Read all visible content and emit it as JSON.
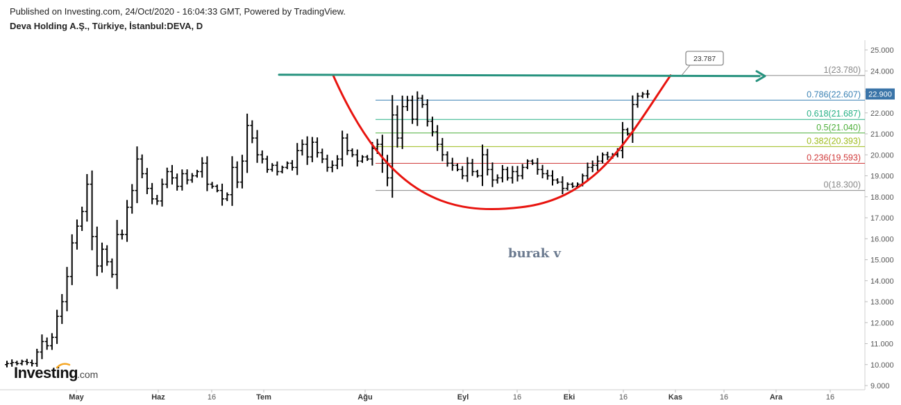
{
  "header": {
    "published": "Published on Investing.com, 24/Oct/2020 - 16:04:33 GMT, Powered by TradingView.",
    "symbol": "Deva Holding A.Ş., Türkiye, İstanbul:DEVA, D"
  },
  "logo": {
    "main": "Investing",
    "suffix": ".com"
  },
  "annotation": {
    "author": "burak v",
    "callout_value": "23.787"
  },
  "last_price": {
    "label": "22.900",
    "value": 22.9,
    "bg_color": "#3a74a8"
  },
  "colors": {
    "bars": "#000000",
    "cup": "#e8140f",
    "resistance": "#26927e",
    "fib_1": "#888888",
    "fib_0786": "#3b82b4",
    "fib_0618": "#26b085",
    "fib_05": "#4caf3a",
    "fib_0382": "#9dbb1a",
    "fib_0236": "#d03a3a",
    "fib_0": "#888888"
  },
  "chart_data": {
    "type": "ohlc-bar",
    "title": "Deva Holding A.Ş., Türkiye, İstanbul:DEVA, D",
    "ylim": [
      9.0,
      25.5
    ],
    "y_ticks": [
      "9.000",
      "10.000",
      "11.000",
      "12.000",
      "13.000",
      "14.000",
      "15.000",
      "16.000",
      "17.000",
      "18.000",
      "19.000",
      "20.000",
      "21.000",
      "22.000",
      "23.000",
      "24.000",
      "25.000"
    ],
    "x_ticks": [
      {
        "label": "May",
        "bold": true
      },
      {
        "label": "Haz",
        "bold": true
      },
      {
        "label": "16",
        "bold": false
      },
      {
        "label": "Tem",
        "bold": true
      },
      {
        "label": "Ağu",
        "bold": true
      },
      {
        "label": "Eyl",
        "bold": true
      },
      {
        "label": "16",
        "bold": false
      },
      {
        "label": "Eki",
        "bold": true
      },
      {
        "label": "16",
        "bold": false
      },
      {
        "label": "Kas",
        "bold": true
      },
      {
        "label": "16",
        "bold": false
      },
      {
        "label": "Ara",
        "bold": true
      },
      {
        "label": "16",
        "bold": false
      }
    ],
    "fib_levels": [
      {
        "ratio": "1",
        "price": 23.78,
        "label": "1(23.780)",
        "color_key": "fib_1"
      },
      {
        "ratio": "0.786",
        "price": 22.607,
        "label": "0.786(22.607)",
        "color_key": "fib_0786"
      },
      {
        "ratio": "0.618",
        "price": 21.687,
        "label": "0.618(21.687)",
        "color_key": "fib_0618"
      },
      {
        "ratio": "0.5",
        "price": 21.04,
        "label": "0.5(21.040)",
        "color_key": "fib_05"
      },
      {
        "ratio": "0.382",
        "price": 20.393,
        "label": "0.382(20.393)",
        "color_key": "fib_0382"
      },
      {
        "ratio": "0.236",
        "price": 19.593,
        "label": "0.236(19.593)",
        "color_key": "fib_0236"
      },
      {
        "ratio": "0",
        "price": 18.3,
        "label": "0(18.300)",
        "color_key": "fib_0"
      }
    ],
    "resistance_price": 23.787,
    "cup_bottom_price": 17.5,
    "closes": [
      10.05,
      10.1,
      10.05,
      10.15,
      10.1,
      10.05,
      10.6,
      11.1,
      10.9,
      11.3,
      12.3,
      13.0,
      14.2,
      15.8,
      16.6,
      17.3,
      18.6,
      16.1,
      14.7,
      15.5,
      14.9,
      14.3,
      16.2,
      16.2,
      17.5,
      18.3,
      19.8,
      19.1,
      18.4,
      17.9,
      17.8,
      18.6,
      19.2,
      18.9,
      18.5,
      19.1,
      18.8,
      19.0,
      19.2,
      19.6,
      18.6,
      18.5,
      18.3,
      17.9,
      18.1,
      19.4,
      18.7,
      19.7,
      21.4,
      20.8,
      20.0,
      19.8,
      19.3,
      19.5,
      19.2,
      19.4,
      19.6,
      19.4,
      20.2,
      20.5,
      19.9,
      20.6,
      20.1,
      19.8,
      19.4,
      19.5,
      19.8,
      20.8,
      20.2,
      20.0,
      19.7,
      19.9,
      19.8,
      20.3,
      20.5,
      19.6,
      18.9,
      21.9,
      20.8,
      22.3,
      22.6,
      21.7,
      22.7,
      22.4,
      21.6,
      21.1,
      20.5,
      20.0,
      19.6,
      19.5,
      19.3,
      19.0,
      19.6,
      19.2,
      19.0,
      20.0,
      19.3,
      18.8,
      18.9,
      19.3,
      18.9,
      19.2,
      19.0,
      19.4,
      19.7,
      19.6,
      19.3,
      19.1,
      19.0,
      18.8,
      18.7,
      18.4,
      18.6,
      18.5,
      18.6,
      19.0,
      19.4,
      19.5,
      19.7,
      20.0,
      19.9,
      20.0,
      20.2,
      21.2,
      21.0,
      22.4,
      22.8,
      22.9,
      22.9
    ]
  }
}
